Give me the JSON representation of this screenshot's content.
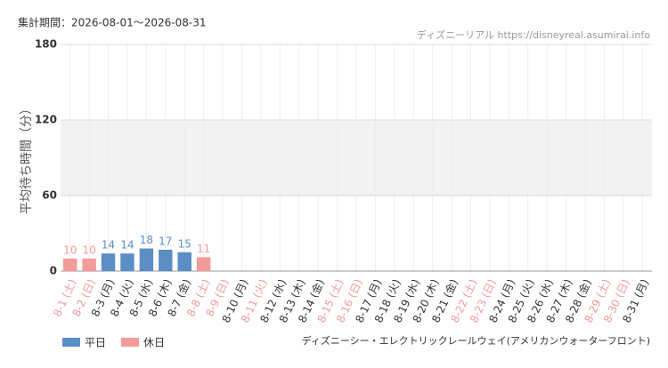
{
  "chart_data": {
    "type": "bar",
    "period": "集計期間：2026-08-01～2026-08-31",
    "source": "ディズニーリアル https://disneyreal.asumirai.info",
    "ylabel": "平均待ち時間（分）",
    "subtitle": "ディズニーシー・エレクトリックレールウェイ(アメリカンウォーターフロント)",
    "categories": [
      "8-1 (土)",
      "8-2 (日)",
      "8-3 (月)",
      "8-4 (火)",
      "8-5 (水)",
      "8-6 (木)",
      "8-7 (金)",
      "8-8 (土)",
      "8-9 (日)",
      "8-10 (月)",
      "8-11 (火)",
      "8-12 (水)",
      "8-13 (木)",
      "8-14 (金)",
      "8-15 (土)",
      "8-16 (日)",
      "8-17 (月)",
      "8-18 (火)",
      "8-19 (水)",
      "8-20 (木)",
      "8-21 (金)",
      "8-22 (土)",
      "8-23 (日)",
      "8-24 (月)",
      "8-25 (火)",
      "8-26 (水)",
      "8-27 (木)",
      "8-28 (金)",
      "8-29 (土)",
      "8-30 (日)",
      "8-31 (月)"
    ],
    "holiday": [
      true,
      true,
      false,
      false,
      false,
      false,
      false,
      true,
      true,
      false,
      true,
      false,
      false,
      false,
      true,
      true,
      false,
      false,
      false,
      false,
      false,
      true,
      true,
      false,
      false,
      false,
      false,
      false,
      true,
      true,
      false
    ],
    "series": [
      {
        "name": "平日",
        "color": "#5b8ec4",
        "values": [
          null,
          null,
          14,
          14,
          18,
          17,
          15,
          null,
          null,
          null,
          null,
          null,
          null,
          null,
          null,
          null,
          null,
          null,
          null,
          null,
          null,
          null,
          null,
          null,
          null,
          null,
          null,
          null,
          null,
          null,
          null
        ]
      },
      {
        "name": "休日",
        "color": "#f59a9a",
        "values": [
          10,
          10,
          null,
          null,
          null,
          null,
          null,
          11,
          null,
          null,
          null,
          null,
          null,
          null,
          null,
          null,
          null,
          null,
          null,
          null,
          null,
          null,
          null,
          null,
          null,
          null,
          null,
          null,
          null,
          null,
          null
        ]
      }
    ],
    "ylim": [
      0,
      180
    ],
    "yticks": [
      0,
      60,
      120,
      180
    ],
    "highlight_band": [
      60,
      120
    ],
    "grid": true
  }
}
